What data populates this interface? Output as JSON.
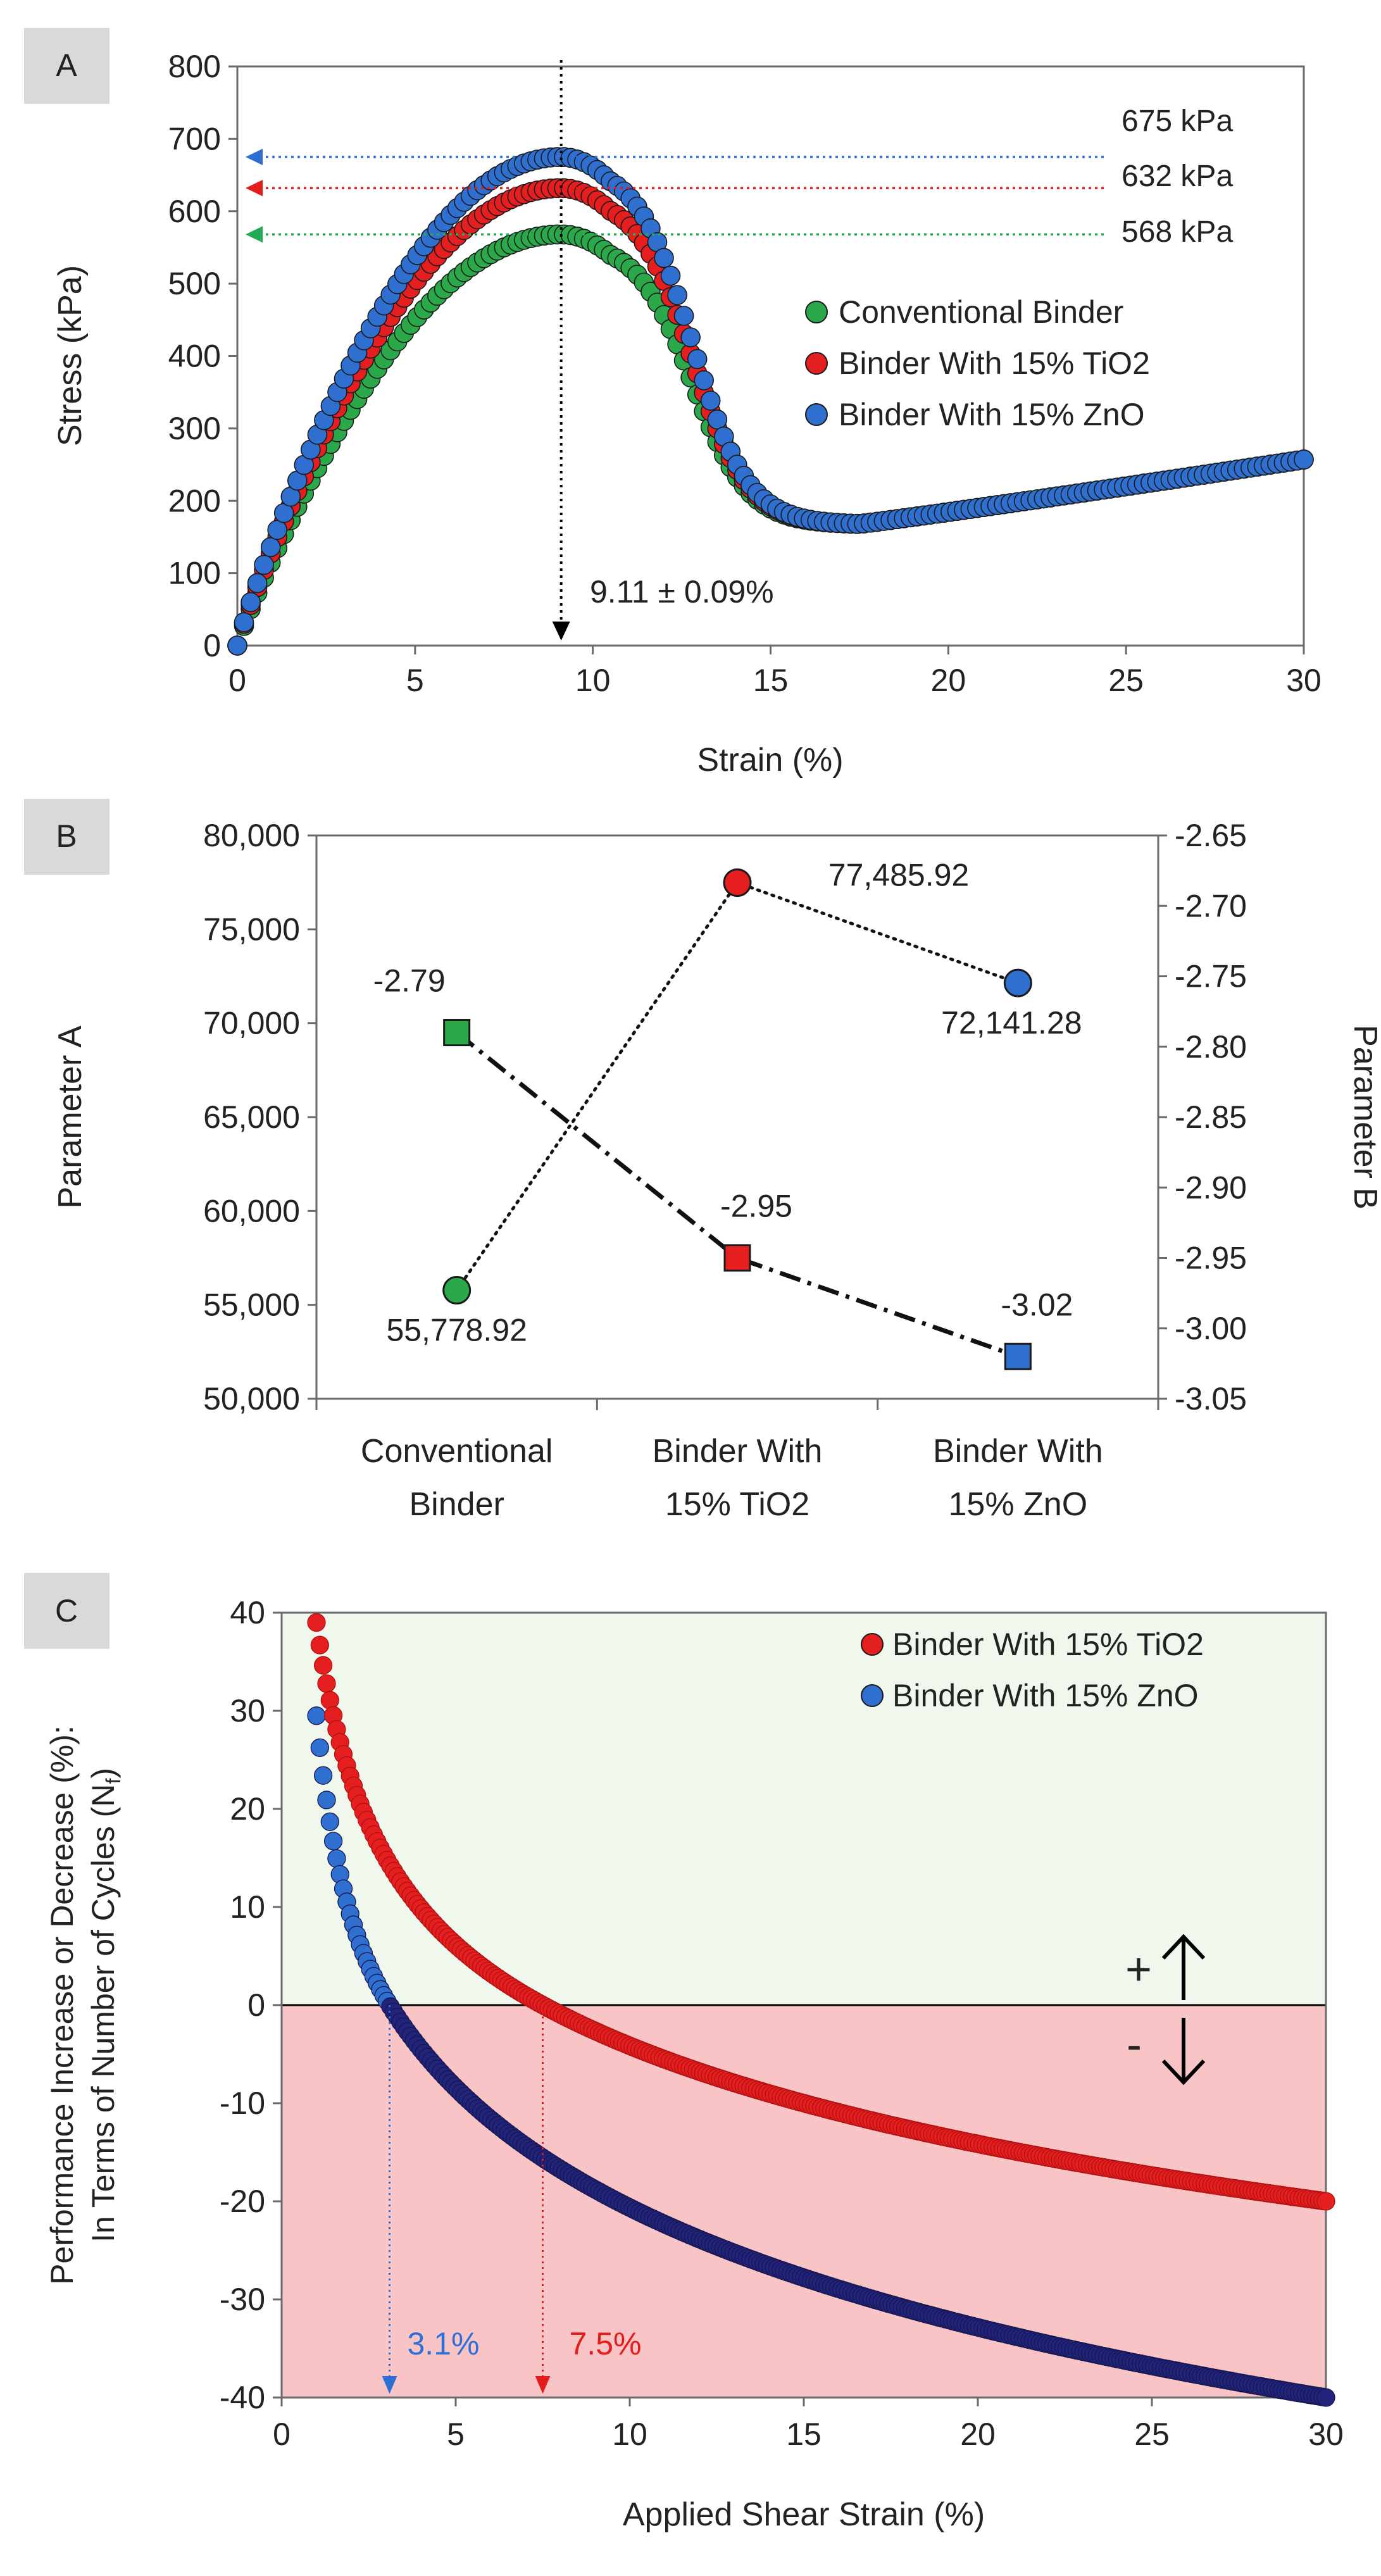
{
  "colors": {
    "conventional": "#2aa84a",
    "tio2": "#e51f1f",
    "zno": "#2f6fd0",
    "zno_dark": "#22237a",
    "blue_arrow": "#2e6fd6",
    "red_arrow": "#e41c1c",
    "green_arrow": "#22aa55",
    "increase_zone": "#f0f8ee",
    "decrease_zone": "#f9c4c6",
    "panel_tag": "#d9d9d9"
  },
  "panelA": {
    "tag": "A",
    "chart_data": {
      "type": "scatter",
      "xlabel": "Strain (%)",
      "ylabel": "Stress (kPa)",
      "xlim": [
        0,
        30
      ],
      "ylim": [
        0,
        800
      ],
      "xticks": [
        0,
        5,
        10,
        15,
        20,
        25,
        30
      ],
      "yticks": [
        0,
        100,
        200,
        300,
        400,
        500,
        600,
        700,
        800
      ],
      "legend_position": "center-right",
      "series": [
        {
          "name": "Conventional Binder",
          "key": "conventional",
          "peak_stress": 568,
          "peak_strain": 9.11
        },
        {
          "name": "Binder With 15% TiO2",
          "key": "tio2",
          "peak_stress": 632,
          "peak_strain": 9.11
        },
        {
          "name": "Binder With 15% ZnO",
          "key": "zno",
          "peak_stress": 675,
          "peak_strain": 9.11
        }
      ],
      "post_peak_min": {
        "strain": 17.5,
        "stress": 168
      },
      "end_point": {
        "strain": 30,
        "stress": 257
      },
      "peak_labels": [
        "675 kPa",
        "632 kPa",
        "568 kPa"
      ],
      "vertical_marker": {
        "strain": 9.11,
        "label": "9.11 ± 0.09%"
      }
    }
  },
  "panelB": {
    "tag": "B",
    "chart_data": {
      "type": "line",
      "categories": [
        "Conventional Binder",
        "Binder With 15% TiO2",
        "Binder With 15% ZnO"
      ],
      "category_lines": [
        [
          "Conventional",
          "Binder"
        ],
        [
          "Binder With",
          "15% TiO2"
        ],
        [
          "Binder With",
          "15% ZnO"
        ]
      ],
      "ylabel_left": "Parameter A",
      "ylabel_right": "Parameter B",
      "ylim_left": [
        50000,
        80000
      ],
      "ylim_right": [
        -3.05,
        -2.65
      ],
      "yticks_left": [
        50000,
        55000,
        60000,
        65000,
        70000,
        75000,
        80000
      ],
      "ytick_labels_left": [
        "50,000",
        "55,000",
        "60,000",
        "65,000",
        "70,000",
        "75,000",
        "80,000"
      ],
      "yticks_right": [
        -3.05,
        -3.0,
        -2.95,
        -2.9,
        -2.85,
        -2.8,
        -2.75,
        -2.7,
        -2.65
      ],
      "ytick_labels_right": [
        "-3.05",
        "-3.00",
        "-2.95",
        "-2.90",
        "-2.85",
        "-2.80",
        "-2.75",
        "-2.70",
        "-2.65"
      ],
      "series": [
        {
          "name": "Parameter A",
          "axis": "left",
          "marker": "circle",
          "line": "dotted",
          "values": [
            55778.92,
            77485.92,
            72141.28
          ],
          "labels": [
            "55,778.92",
            "77,485.92",
            "72,141.28"
          ]
        },
        {
          "name": "Parameter B",
          "axis": "right",
          "marker": "square",
          "line": "dash-dot",
          "values": [
            -2.79,
            -2.95,
            -3.02
          ],
          "labels": [
            "-2.79",
            "-2.95",
            "-3.02"
          ]
        }
      ]
    }
  },
  "panelC": {
    "tag": "C",
    "chart_data": {
      "type": "scatter",
      "xlabel": "Applied Shear Strain (%)",
      "ylabel_line1": "Performance Increase or Decrease (%):",
      "ylabel_line2_prefix": "In Terms of Number of Cycles (N",
      "ylabel_line2_sub": "f",
      "ylabel_line2_suffix": ")",
      "xlim": [
        0,
        30
      ],
      "ylim": [
        -40,
        40
      ],
      "xticks": [
        0,
        5,
        10,
        15,
        20,
        25,
        30
      ],
      "yticks": [
        -40,
        -30,
        -20,
        -10,
        0,
        10,
        20,
        30,
        40
      ],
      "legend_position": "top-right",
      "series": [
        {
          "name": "Binder With 15% TiO2",
          "key": "tio2",
          "x_start": 1.0,
          "x_end": 30,
          "start_value": 39,
          "end_value": -20,
          "zero_crossing": 7.5
        },
        {
          "name": "Binder With 15% ZnO",
          "key": "zno",
          "x_start": 1.0,
          "x_end": 30,
          "start_value": 29.5,
          "end_value": -40,
          "zero_crossing": 3.1
        }
      ],
      "crossing_labels": [
        "3.1%",
        "7.5%"
      ],
      "increase_symbol": "+",
      "decrease_symbol": "-"
    }
  }
}
